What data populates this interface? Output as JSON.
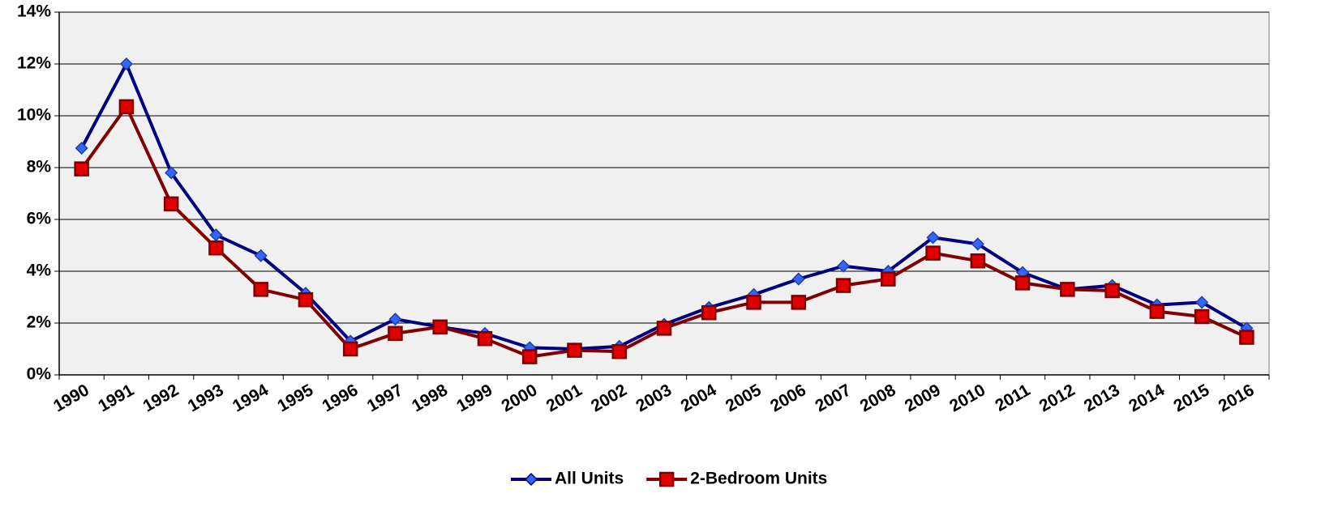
{
  "chart_data": {
    "type": "line",
    "categories": [
      "1990",
      "1991",
      "1992",
      "1993",
      "1994",
      "1995",
      "1996",
      "1997",
      "1998",
      "1999",
      "2000",
      "2001",
      "2002",
      "2003",
      "2004",
      "2005",
      "2006",
      "2007",
      "2008",
      "2009",
      "2010",
      "2011",
      "2012",
      "2013",
      "2014",
      "2015",
      "2016"
    ],
    "series": [
      {
        "name": "All Units",
        "color": "#000080",
        "marker_color": "#3366ff",
        "marker": "diamond",
        "values": [
          8.75,
          12.0,
          7.8,
          5.4,
          4.6,
          3.15,
          1.3,
          2.15,
          1.85,
          1.6,
          1.05,
          1.0,
          1.1,
          1.95,
          2.6,
          3.1,
          3.7,
          4.2,
          4.0,
          5.3,
          5.05,
          3.95,
          3.3,
          3.45,
          2.7,
          2.8,
          1.8
        ]
      },
      {
        "name": "2-Bedroom Units",
        "color": "#800000",
        "marker_color": "#e00000",
        "marker": "square",
        "values": [
          7.95,
          10.35,
          6.6,
          4.9,
          3.3,
          2.9,
          1.0,
          1.6,
          1.85,
          1.4,
          0.7,
          0.95,
          0.9,
          1.8,
          2.4,
          2.8,
          2.8,
          3.45,
          3.7,
          4.7,
          4.4,
          3.55,
          3.3,
          3.25,
          2.45,
          2.25,
          1.45
        ]
      }
    ],
    "ylim": [
      0,
      14
    ],
    "yticks": [
      {
        "value": 0,
        "label": "0%"
      },
      {
        "value": 2,
        "label": "2%"
      },
      {
        "value": 4,
        "label": "4%"
      },
      {
        "value": 6,
        "label": "6%"
      },
      {
        "value": 8,
        "label": "8%"
      },
      {
        "value": 10,
        "label": "10%"
      },
      {
        "value": 12,
        "label": "12%"
      },
      {
        "value": 14,
        "label": "14%"
      }
    ],
    "grid": true,
    "legend": "bottom"
  }
}
